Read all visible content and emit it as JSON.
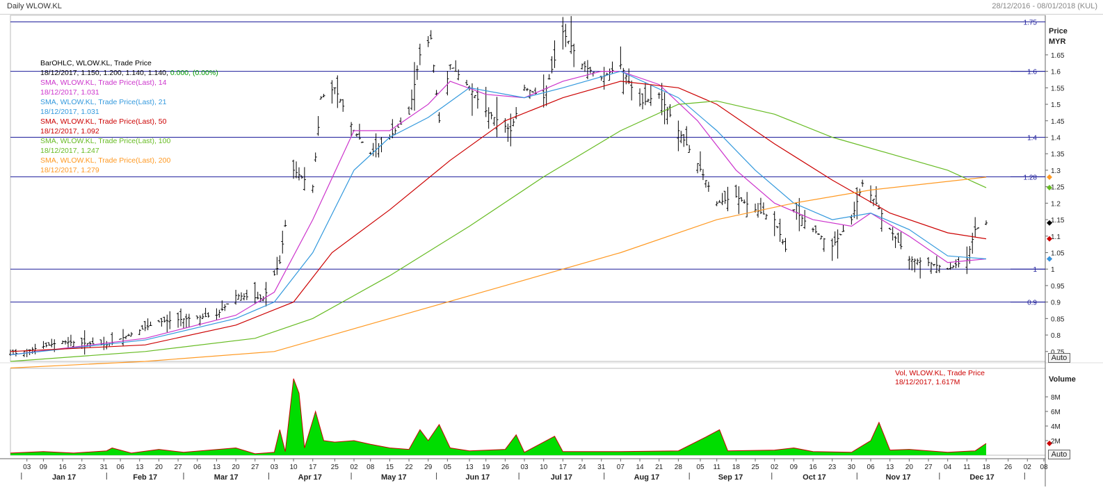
{
  "header": {
    "title": "Daily WLOW.KL",
    "date_range": "28/12/2016 - 08/01/2018 (KUL)"
  },
  "price_axis": {
    "title": "Price",
    "unit": "MYR",
    "ticks": [
      "1.65",
      "1.6",
      "1.55",
      "1.5",
      "1.45",
      "1.4",
      "1.35",
      "1.3",
      "1.25",
      "1.2",
      "1.15",
      "1.1",
      "1.05",
      "1",
      "0.95",
      "0.9",
      "0.85",
      "0.8",
      "0.75"
    ],
    "auto_label": "Auto"
  },
  "volume_axis": {
    "title": "Volume",
    "ticks": [
      "8M",
      "6M",
      "4M",
      "2M"
    ],
    "auto_label": "Auto"
  },
  "legend": {
    "ohlc_title": "BarOHLC, WLOW.KL, Trade Price",
    "ohlc_values": "18/12/2017, 1.150, 1.200, 1.140, 1.140,",
    "ohlc_change": "0.000, (0.00%)",
    "sma14_title": "SMA, WLOW.KL, Trade Price(Last), 14",
    "sma14_value": "18/12/2017, 1.031",
    "sma21_title": "SMA, WLOW.KL, Trade Price(Last), 21",
    "sma21_value": "18/12/2017, 1.031",
    "sma50_title": "SMA, WLOW.KL, Trade Price(Last), 50",
    "sma50_value": "18/12/2017, 1.092",
    "sma100_title": "SMA, WLOW.KL, Trade Price(Last), 100",
    "sma100_value": "18/12/2017, 1.247",
    "sma200_title": "SMA, WLOW.KL, Trade Price(Last), 200",
    "sma200_value": "18/12/2017, 1.279"
  },
  "volume_legend": {
    "title": "Vol, WLOW.KL, Trade Price",
    "value": "18/12/2017, 1.617M"
  },
  "colors": {
    "bars": "#000000",
    "sma14": "#cc33cc",
    "sma21": "#3399dd",
    "sma50": "#cc0000",
    "sma100": "#66bb22",
    "sma200": "#ff9922",
    "hlines": "#1a1a99",
    "volume_fill": "#00dd00",
    "volume_line": "#cc0000",
    "up_change": "#009900"
  },
  "chart_data": [
    {
      "type": "line",
      "title": "Daily WLOW.KL",
      "ylabel": "Price MYR",
      "y_range": [
        0.72,
        1.77
      ],
      "grid": true,
      "legend_placement": "top-left",
      "x_day_labels": [
        "03",
        "09",
        "16",
        "23",
        "31",
        "06",
        "13",
        "20",
        "27",
        "06",
        "13",
        "20",
        "27",
        "03",
        "10",
        "17",
        "25",
        "02",
        "08",
        "15",
        "22",
        "29",
        "05",
        "13",
        "19",
        "26",
        "03",
        "10",
        "17",
        "24",
        "31",
        "07",
        "14",
        "21",
        "28",
        "05",
        "11",
        "18",
        "25",
        "02",
        "09",
        "16",
        "23",
        "30",
        "06",
        "13",
        "20",
        "27",
        "04",
        "11",
        "18",
        "26",
        "02",
        "08"
      ],
      "x_month_labels": [
        "Jan 17",
        "Feb 17",
        "Mar 17",
        "Apr 17",
        "May 17",
        "Jun 17",
        "Jul 17",
        "Aug 17",
        "Sep 17",
        "Oct 17",
        "Nov 17",
        "Dec 17"
      ],
      "horizontal_lines": [
        {
          "value": 1.75,
          "label": "1.75"
        },
        {
          "value": 1.6,
          "label": "1.6"
        },
        {
          "value": 1.4,
          "label": "1.4"
        },
        {
          "value": 1.28,
          "label": "1.28"
        },
        {
          "value": 1.0,
          "label": "1"
        },
        {
          "value": 0.9,
          "label": "0.9"
        }
      ],
      "ohlc_close_anchors": [
        {
          "date": "2016-12-28",
          "close": 0.74
        },
        {
          "date": "2017-01-16",
          "close": 0.78
        },
        {
          "date": "2017-02-01",
          "close": 0.77
        },
        {
          "date": "2017-02-20",
          "close": 0.84
        },
        {
          "date": "2017-03-13",
          "close": 0.86
        },
        {
          "date": "2017-03-20",
          "close": 0.92
        },
        {
          "date": "2017-03-30",
          "close": 0.91
        },
        {
          "date": "2017-04-05",
          "close": 1.02
        },
        {
          "date": "2017-04-10",
          "close": 1.3
        },
        {
          "date": "2017-04-17",
          "close": 1.25
        },
        {
          "date": "2017-04-20",
          "close": 1.52
        },
        {
          "date": "2017-04-25",
          "close": 1.55
        },
        {
          "date": "2017-05-02",
          "close": 1.42
        },
        {
          "date": "2017-05-08",
          "close": 1.35
        },
        {
          "date": "2017-05-15",
          "close": 1.4
        },
        {
          "date": "2017-05-22",
          "close": 1.47
        },
        {
          "date": "2017-05-26",
          "close": 1.65
        },
        {
          "date": "2017-05-30",
          "close": 1.7
        },
        {
          "date": "2017-06-02",
          "close": 1.45
        },
        {
          "date": "2017-06-06",
          "close": 1.62
        },
        {
          "date": "2017-06-13",
          "close": 1.55
        },
        {
          "date": "2017-06-19",
          "close": 1.48
        },
        {
          "date": "2017-06-28",
          "close": 1.42
        },
        {
          "date": "2017-07-03",
          "close": 1.55
        },
        {
          "date": "2017-07-10",
          "close": 1.52
        },
        {
          "date": "2017-07-17",
          "close": 1.72
        },
        {
          "date": "2017-07-24",
          "close": 1.62
        },
        {
          "date": "2017-07-31",
          "close": 1.58
        },
        {
          "date": "2017-08-07",
          "close": 1.62
        },
        {
          "date": "2017-08-14",
          "close": 1.5
        },
        {
          "date": "2017-08-21",
          "close": 1.53
        },
        {
          "date": "2017-08-28",
          "close": 1.42
        },
        {
          "date": "2017-09-04",
          "close": 1.32
        },
        {
          "date": "2017-09-11",
          "close": 1.2
        },
        {
          "date": "2017-09-18",
          "close": 1.22
        },
        {
          "date": "2017-09-25",
          "close": 1.18
        },
        {
          "date": "2017-10-02",
          "close": 1.15
        },
        {
          "date": "2017-10-06",
          "close": 1.06
        },
        {
          "date": "2017-10-09",
          "close": 1.18
        },
        {
          "date": "2017-10-16",
          "close": 1.12
        },
        {
          "date": "2017-10-23",
          "close": 1.07
        },
        {
          "date": "2017-10-30",
          "close": 1.15
        },
        {
          "date": "2017-11-03",
          "close": 1.26
        },
        {
          "date": "2017-11-08",
          "close": 1.2
        },
        {
          "date": "2017-11-13",
          "close": 1.12
        },
        {
          "date": "2017-11-20",
          "close": 1.03
        },
        {
          "date": "2017-11-27",
          "close": 1.02
        },
        {
          "date": "2017-12-04",
          "close": 1.0
        },
        {
          "date": "2017-12-11",
          "close": 1.03
        },
        {
          "date": "2017-12-14",
          "close": 1.12
        },
        {
          "date": "2017-12-18",
          "close": 1.14
        }
      ],
      "series": [
        {
          "name": "SMA, WLOW.KL, Trade Price(Last), 14",
          "points": [
            [
              "2016-12-28",
              0.74
            ],
            [
              "2017-02-15",
              0.79
            ],
            [
              "2017-03-20",
              0.86
            ],
            [
              "2017-04-03",
              0.93
            ],
            [
              "2017-04-17",
              1.15
            ],
            [
              "2017-05-02",
              1.42
            ],
            [
              "2017-05-15",
              1.42
            ],
            [
              "2017-05-29",
              1.5
            ],
            [
              "2017-06-06",
              1.57
            ],
            [
              "2017-06-19",
              1.53
            ],
            [
              "2017-07-03",
              1.52
            ],
            [
              "2017-07-17",
              1.57
            ],
            [
              "2017-07-31",
              1.6
            ],
            [
              "2017-08-07",
              1.6
            ],
            [
              "2017-08-21",
              1.56
            ],
            [
              "2017-09-04",
              1.45
            ],
            [
              "2017-09-18",
              1.3
            ],
            [
              "2017-10-02",
              1.2
            ],
            [
              "2017-10-16",
              1.15
            ],
            [
              "2017-10-30",
              1.13
            ],
            [
              "2017-11-06",
              1.17
            ],
            [
              "2017-11-20",
              1.1
            ],
            [
              "2017-12-04",
              1.02
            ],
            [
              "2017-12-18",
              1.031
            ]
          ]
        },
        {
          "name": "SMA, WLOW.KL, Trade Price(Last), 21",
          "points": [
            [
              "2016-12-28",
              0.74
            ],
            [
              "2017-02-15",
              0.785
            ],
            [
              "2017-03-20",
              0.85
            ],
            [
              "2017-04-03",
              0.9
            ],
            [
              "2017-04-17",
              1.05
            ],
            [
              "2017-05-02",
              1.3
            ],
            [
              "2017-05-15",
              1.4
            ],
            [
              "2017-05-29",
              1.46
            ],
            [
              "2017-06-13",
              1.55
            ],
            [
              "2017-07-03",
              1.52
            ],
            [
              "2017-07-17",
              1.55
            ],
            [
              "2017-08-07",
              1.6
            ],
            [
              "2017-08-28",
              1.52
            ],
            [
              "2017-09-11",
              1.42
            ],
            [
              "2017-09-25",
              1.3
            ],
            [
              "2017-10-09",
              1.2
            ],
            [
              "2017-10-23",
              1.15
            ],
            [
              "2017-11-06",
              1.17
            ],
            [
              "2017-11-20",
              1.12
            ],
            [
              "2017-12-04",
              1.04
            ],
            [
              "2017-12-18",
              1.031
            ]
          ]
        },
        {
          "name": "SMA, WLOW.KL, Trade Price(Last), 50",
          "points": [
            [
              "2016-12-28",
              0.75
            ],
            [
              "2017-02-15",
              0.77
            ],
            [
              "2017-03-20",
              0.83
            ],
            [
              "2017-04-10",
              0.9
            ],
            [
              "2017-04-24",
              1.05
            ],
            [
              "2017-05-15",
              1.18
            ],
            [
              "2017-06-06",
              1.33
            ],
            [
              "2017-06-26",
              1.45
            ],
            [
              "2017-07-17",
              1.52
            ],
            [
              "2017-08-07",
              1.57
            ],
            [
              "2017-08-28",
              1.55
            ],
            [
              "2017-09-11",
              1.5
            ],
            [
              "2017-10-02",
              1.38
            ],
            [
              "2017-10-23",
              1.27
            ],
            [
              "2017-11-13",
              1.17
            ],
            [
              "2017-12-04",
              1.11
            ],
            [
              "2017-12-18",
              1.092
            ]
          ]
        },
        {
          "name": "SMA, WLOW.KL, Trade Price(Last), 100",
          "points": [
            [
              "2016-12-28",
              0.72
            ],
            [
              "2017-02-15",
              0.75
            ],
            [
              "2017-03-27",
              0.79
            ],
            [
              "2017-04-17",
              0.85
            ],
            [
              "2017-05-15",
              0.98
            ],
            [
              "2017-06-13",
              1.13
            ],
            [
              "2017-07-10",
              1.28
            ],
            [
              "2017-08-07",
              1.42
            ],
            [
              "2017-08-28",
              1.5
            ],
            [
              "2017-09-11",
              1.51
            ],
            [
              "2017-10-02",
              1.47
            ],
            [
              "2017-10-23",
              1.4
            ],
            [
              "2017-11-13",
              1.35
            ],
            [
              "2017-12-04",
              1.3
            ],
            [
              "2017-12-18",
              1.247
            ]
          ]
        },
        {
          "name": "SMA, WLOW.KL, Trade Price(Last), 200",
          "points": [
            [
              "2016-12-28",
              0.7
            ],
            [
              "2017-02-15",
              0.72
            ],
            [
              "2017-04-03",
              0.75
            ],
            [
              "2017-05-15",
              0.85
            ],
            [
              "2017-06-26",
              0.95
            ],
            [
              "2017-08-07",
              1.05
            ],
            [
              "2017-09-11",
              1.15
            ],
            [
              "2017-10-09",
              1.2
            ],
            [
              "2017-11-06",
              1.24
            ],
            [
              "2017-12-18",
              1.279
            ]
          ]
        }
      ]
    },
    {
      "type": "area",
      "title": "Vol, WLOW.KL, Trade Price",
      "ylabel": "Volume",
      "y_range": [
        0,
        10
      ],
      "unit": "M",
      "points": [
        [
          "2016-12-28",
          0.3
        ],
        [
          "2017-01-09",
          0.5
        ],
        [
          "2017-01-20",
          0.3
        ],
        [
          "2017-02-01",
          0.6
        ],
        [
          "2017-02-03",
          1.0
        ],
        [
          "2017-02-10",
          0.3
        ],
        [
          "2017-02-20",
          0.8
        ],
        [
          "2017-03-01",
          0.4
        ],
        [
          "2017-03-20",
          1.0
        ],
        [
          "2017-03-27",
          0.2
        ],
        [
          "2017-04-03",
          0.4
        ],
        [
          "2017-04-05",
          3.5
        ],
        [
          "2017-04-07",
          0.5
        ],
        [
          "2017-04-10",
          10.5
        ],
        [
          "2017-04-12",
          8.5
        ],
        [
          "2017-04-14",
          1.0
        ],
        [
          "2017-04-18",
          6.0
        ],
        [
          "2017-04-21",
          2.0
        ],
        [
          "2017-04-25",
          1.8
        ],
        [
          "2017-05-02",
          2.0
        ],
        [
          "2017-05-08",
          1.5
        ],
        [
          "2017-05-15",
          1.0
        ],
        [
          "2017-05-22",
          0.8
        ],
        [
          "2017-05-26",
          3.5
        ],
        [
          "2017-05-29",
          2.0
        ],
        [
          "2017-06-02",
          4.2
        ],
        [
          "2017-06-06",
          1.0
        ],
        [
          "2017-06-13",
          0.6
        ],
        [
          "2017-06-26",
          0.8
        ],
        [
          "2017-06-30",
          2.8
        ],
        [
          "2017-07-03",
          0.4
        ],
        [
          "2017-07-14",
          2.6
        ],
        [
          "2017-07-17",
          0.5
        ],
        [
          "2017-08-07",
          0.5
        ],
        [
          "2017-08-28",
          0.6
        ],
        [
          "2017-09-07",
          2.5
        ],
        [
          "2017-09-12",
          3.5
        ],
        [
          "2017-09-15",
          0.6
        ],
        [
          "2017-10-02",
          0.7
        ],
        [
          "2017-10-09",
          1.0
        ],
        [
          "2017-10-16",
          0.5
        ],
        [
          "2017-10-30",
          0.4
        ],
        [
          "2017-11-06",
          2.0
        ],
        [
          "2017-11-09",
          4.5
        ],
        [
          "2017-11-13",
          0.7
        ],
        [
          "2017-11-20",
          0.8
        ],
        [
          "2017-12-04",
          0.4
        ],
        [
          "2017-12-14",
          0.6
        ],
        [
          "2017-12-18",
          1.617
        ]
      ]
    }
  ]
}
